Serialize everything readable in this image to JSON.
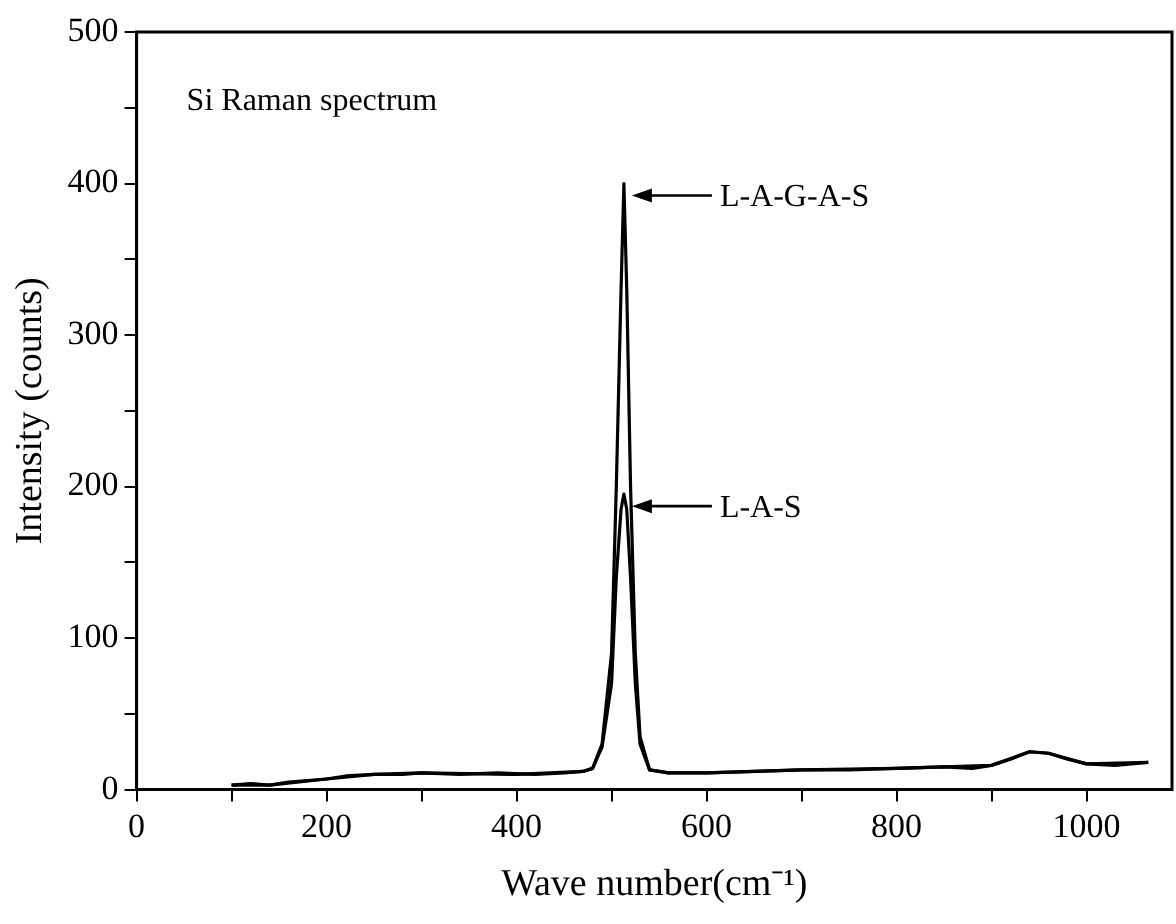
{
  "chart_data": {
    "type": "line",
    "xlabel": "Wave number(cm⁻¹)",
    "ylabel": "Intensity (counts)",
    "annotations": [
      "Si Raman spectrum"
    ],
    "xlim": [
      0,
      1090
    ],
    "xticks": [
      0,
      {
        "value": 100,
        "label": null
      },
      200,
      {
        "value": 300,
        "label": null
      },
      400,
      {
        "value": 500,
        "label": null
      },
      600,
      {
        "value": 700,
        "label": null
      },
      800,
      {
        "value": 900,
        "label": null
      },
      1000
    ],
    "ylim": [
      0,
      500
    ],
    "yticks": [
      0,
      {
        "value": 50,
        "label": null
      },
      100,
      {
        "value": 150,
        "label": null
      },
      200,
      {
        "value": 250,
        "label": null
      },
      300,
      {
        "value": 350,
        "label": null
      },
      400,
      {
        "value": 450,
        "label": null
      },
      500
    ],
    "grid": false,
    "legend": "right",
    "marker": "none",
    "line_style": "solid",
    "series": [
      {
        "name": "L-A-G-A-S",
        "color": "#000000",
        "x": [
          100,
          120,
          140,
          160,
          180,
          200,
          220,
          250,
          280,
          300,
          340,
          380,
          420,
          450,
          470,
          480,
          490,
          500,
          505,
          510,
          513,
          516,
          520,
          525,
          530,
          540,
          560,
          600,
          650,
          700,
          750,
          800,
          850,
          880,
          900,
          920,
          940,
          960,
          980,
          1000,
          1030,
          1065
        ],
        "values": [
          3,
          4,
          3,
          5,
          6,
          7,
          9,
          10,
          10,
          11,
          10,
          11,
          10,
          11,
          12,
          14,
          30,
          90,
          200,
          330,
          400,
          330,
          200,
          90,
          35,
          13,
          11,
          11,
          12,
          13,
          13,
          14,
          15,
          14,
          16,
          20,
          25,
          24,
          20,
          17,
          16,
          18
        ]
      },
      {
        "name": "L-A-S",
        "color": "#000000",
        "x": [
          100,
          140,
          200,
          250,
          300,
          400,
          470,
          480,
          490,
          500,
          505,
          510,
          513,
          516,
          520,
          525,
          530,
          540,
          560,
          600,
          700,
          800,
          900,
          940,
          960,
          1000,
          1065
        ],
        "values": [
          3,
          3,
          7,
          10,
          11,
          10,
          12,
          14,
          28,
          70,
          140,
          185,
          195,
          185,
          140,
          70,
          30,
          13,
          11,
          11,
          13,
          14,
          16,
          25,
          24,
          17,
          18
        ]
      }
    ]
  }
}
